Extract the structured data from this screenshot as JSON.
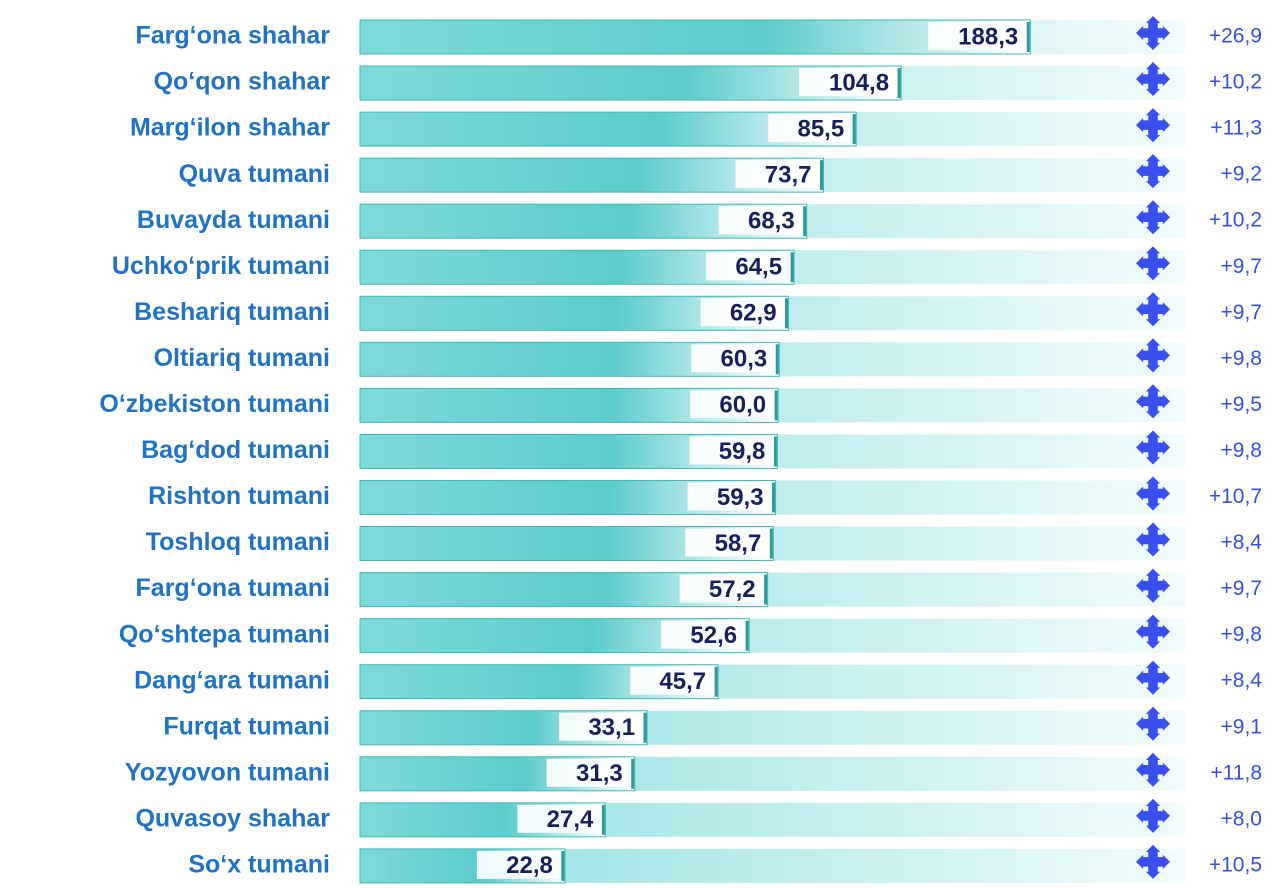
{
  "chart_data": {
    "type": "bar",
    "orientation": "horizontal",
    "log_scale": true,
    "xlim": [
      9,
      380
    ],
    "color": "#6fd6d6",
    "categories": [
      "Farg‘ona shahar",
      "Qo‘qon shahar",
      "Marg‘ilon shahar",
      "Quva tumani",
      "Buvayda tumani",
      "Uchko‘prik tumani",
      "Beshariq tumani",
      "Oltiariq tumani",
      "O‘zbekiston tumani",
      "Bag‘dod tumani",
      "Rishton tumani",
      "Toshloq tumani",
      "Farg‘ona tumani",
      "Qo‘shtepa tumani",
      "Dang‘ara tumani",
      "Furqat tumani",
      "Yozyovon tumani",
      "Quvasoy shahar",
      "So‘x tumani"
    ],
    "values": [
      188.3,
      104.8,
      85.5,
      73.7,
      68.3,
      64.5,
      62.9,
      60.3,
      60.0,
      59.8,
      59.3,
      58.7,
      57.2,
      52.6,
      45.7,
      33.1,
      31.3,
      27.4,
      22.8
    ],
    "value_labels": [
      "188,3",
      "104,8",
      "85,5",
      "73,7",
      "68,3",
      "64,5",
      "62,9",
      "60,3",
      "60,0",
      "59,8",
      "59,3",
      "58,7",
      "57,2",
      "52,6",
      "45,7",
      "33,1",
      "31,3",
      "27,4",
      "22,8"
    ],
    "change": {
      "color": "#3a4ff0",
      "values": [
        26.9,
        10.2,
        11.3,
        9.2,
        10.2,
        9.7,
        9.7,
        9.8,
        9.5,
        9.8,
        10.7,
        8.4,
        9.7,
        9.8,
        8.4,
        9.1,
        11.8,
        8.0,
        10.5
      ],
      "value_labels": [
        "+26,9",
        "+10,2",
        "+11,3",
        "+9,2",
        "+10,2",
        "+9,7",
        "+9,7",
        "+9,8",
        "+9,5",
        "+9,8",
        "+10,7",
        "+8,4",
        "+9,7",
        "+9,8",
        "+8,4",
        "+9,1",
        "+11,8",
        "+8,0",
        "+10,5"
      ]
    }
  }
}
